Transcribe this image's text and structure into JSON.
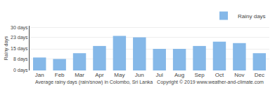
{
  "chart_data": {
    "type": "bar",
    "ylabel": "Rainy days",
    "xlabel": "Average rainy days (rain/snow) in Colombo, Sri Lanka   Copyright © 2019 www.weather-and-climate.com",
    "categories": [
      "Jan",
      "Feb",
      "Mar",
      "Apr",
      "May",
      "Jun",
      "Jul",
      "Aug",
      "Sep",
      "Oct",
      "Nov",
      "Dec"
    ],
    "series": [
      {
        "name": "Rainy days",
        "color": "#85b8e8",
        "values": [
          9,
          8,
          12,
          17,
          24,
          23,
          15,
          15,
          17,
          20,
          19,
          12
        ]
      }
    ],
    "ylim": [
      0,
      31
    ],
    "yticks": [
      {
        "value": 0,
        "label": "0 days"
      },
      {
        "value": 8,
        "label": "8 days"
      },
      {
        "value": 15,
        "label": "15 days"
      },
      {
        "value": 23,
        "label": "23 days"
      },
      {
        "value": 30,
        "label": "30 days"
      }
    ],
    "grid": true,
    "legend": "upper right"
  }
}
